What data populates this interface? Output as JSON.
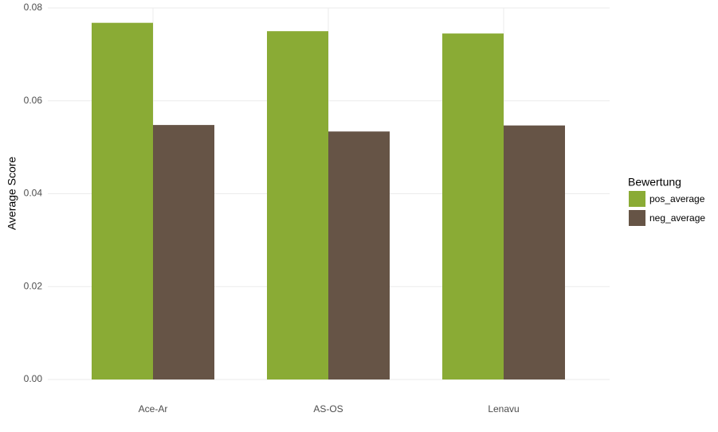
{
  "chart_data": {
    "type": "bar",
    "y_label": "Average Score",
    "categories": [
      "Ace-Ar",
      "AS-OS",
      "Lenavu"
    ],
    "series": [
      {
        "name": "pos_average",
        "color": "#8aab35",
        "values": [
          0.0768,
          0.075,
          0.0745
        ]
      },
      {
        "name": "neg_average",
        "color": "#665446",
        "values": [
          0.0548,
          0.0534,
          0.0547
        ]
      }
    ],
    "ylim": [
      0,
      0.08
    ],
    "yticks": [
      {
        "value": 0,
        "label": "0.00"
      },
      0.02,
      0.04,
      0.06,
      0.08
    ],
    "grid": true,
    "legend_title": "Bewertung",
    "legend_position": "right"
  }
}
